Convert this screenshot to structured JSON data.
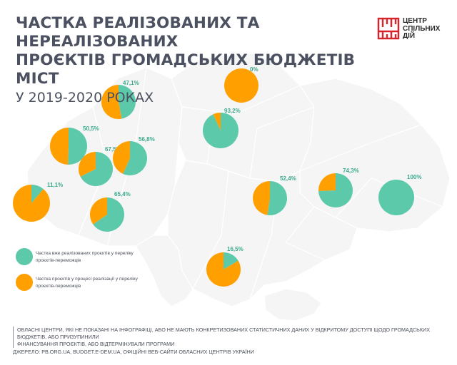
{
  "header": {
    "title_line1": "ЧАСТКА РЕАЛІЗОВАНИХ ТА НЕРЕАЛІЗОВАНИХ",
    "title_line2": "ПРОЄКТІВ ГРОМАДСЬКИХ БЮДЖЕТІВ МІСТ",
    "subtitle": "У 2019-2020 РОКАХ"
  },
  "logo": {
    "line1": "ЦЕНТР",
    "line2": "СПІЛЬНИХ",
    "line3": "ДІЙ",
    "color": "#d8232a"
  },
  "colors": {
    "implemented": "#5cc9aa",
    "in_progress": "#ffa000",
    "label": "#3aa98b",
    "map_fill": "#f5f5f6",
    "map_stroke": "#ffffff"
  },
  "legend": {
    "implemented_line1": "Частка вже реалізованих проєктів у переліку",
    "implemented_line2": "проєктів-переможців",
    "in_progress_line1": "Частка проєктів у процесі реалізації у переліку",
    "in_progress_line2": "проєктів-переможців"
  },
  "footer": {
    "note_line1": "Обласні центри, які не показані на інфографіці, або не мають конкретизованих статистичних даних у відкритому доступі щодо громадських бюджетів, або призупинили",
    "note_line2": "фінансування проєктів, або відтермінували програми",
    "source": "Джерело: pb.org.ua, budget.e-dem.ua, офіційні веб-сайти обласних центрів України"
  },
  "chart_data": {
    "type": "pie",
    "series": [
      {
        "name": "Частка вже реалізованих проєктів у переліку проєктів-переможців"
      },
      {
        "name": "Частка проєктів у процесі реалізації у переліку проєктів-переможців"
      }
    ],
    "pies": [
      {
        "label": "47,1%",
        "implemented": 47.1,
        "in_progress": 52.9
      },
      {
        "label": "0%",
        "implemented": 0,
        "in_progress": 100
      },
      {
        "label": "93,2%",
        "implemented": 93.2,
        "in_progress": 6.8
      },
      {
        "label": "50,5%",
        "implemented": 50.5,
        "in_progress": 49.5
      },
      {
        "label": "67,5%",
        "implemented": 67.5,
        "in_progress": 32.5
      },
      {
        "label": "56,8%",
        "implemented": 56.8,
        "in_progress": 43.2
      },
      {
        "label": "11,1%",
        "implemented": 11.1,
        "in_progress": 88.9
      },
      {
        "label": "65,4%",
        "implemented": 65.4,
        "in_progress": 34.6
      },
      {
        "label": "52,4%",
        "implemented": 52.4,
        "in_progress": 47.6
      },
      {
        "label": "74,3%",
        "implemented": 74.3,
        "in_progress": 25.7
      },
      {
        "label": "100%",
        "implemented": 100,
        "in_progress": 0
      },
      {
        "label": "16,5%",
        "implemented": 16.5,
        "in_progress": 83.5
      }
    ]
  }
}
